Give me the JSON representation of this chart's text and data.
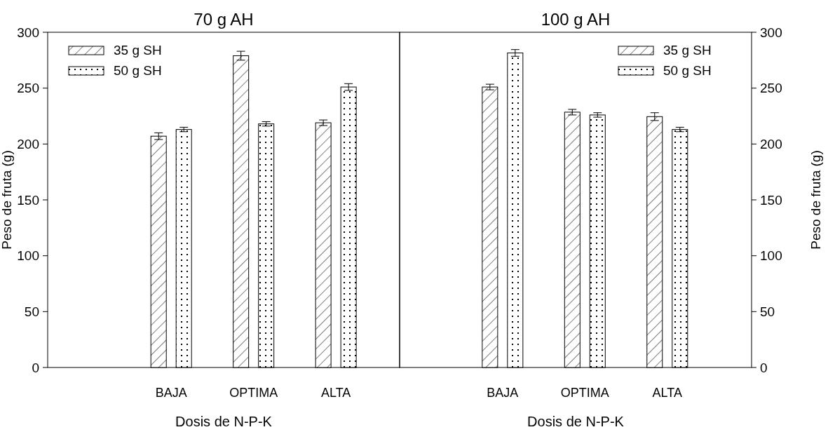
{
  "chart_data": [
    {
      "type": "bar",
      "title": "70 g  AH",
      "xlabel": "Dosis de N-P-K",
      "ylabel": "Peso de fruta (g)",
      "categories": [
        "BAJA",
        "OPTIMA",
        "ALTA"
      ],
      "ylim": [
        0,
        300
      ],
      "yticks": [
        0,
        50,
        100,
        150,
        200,
        250,
        300
      ],
      "legend": "top left",
      "grid": false,
      "series": [
        {
          "name": "35 g SH",
          "color": "#000000",
          "values": [
            207,
            279,
            219
          ],
          "errors": [
            3,
            4,
            2.5
          ]
        },
        {
          "name": "50 g SH",
          "color": "#000000",
          "values": [
            213,
            218,
            251
          ],
          "errors": [
            2,
            2,
            3
          ]
        }
      ]
    },
    {
      "type": "bar",
      "title": "100 g AH",
      "xlabel": "Dosis de N-P-K",
      "y2label": "Peso de fruta (g)",
      "categories": [
        "BAJA",
        "OPTIMA",
        "ALTA"
      ],
      "y2lim": [
        0,
        300
      ],
      "y2ticks": [
        0,
        50,
        100,
        150,
        200,
        250,
        300
      ],
      "legend": "top right",
      "grid": false,
      "series": [
        {
          "name": "35 g SH",
          "color": "#000000",
          "axis": "y2",
          "values": [
            251,
            228.5,
            224.5
          ],
          "errors": [
            2.5,
            2.5,
            3.5
          ]
        },
        {
          "name": "50 g SH",
          "color": "#000000",
          "axis": "y2",
          "values": [
            281.5,
            226,
            213
          ],
          "errors": [
            3,
            2,
            2
          ]
        }
      ]
    }
  ]
}
